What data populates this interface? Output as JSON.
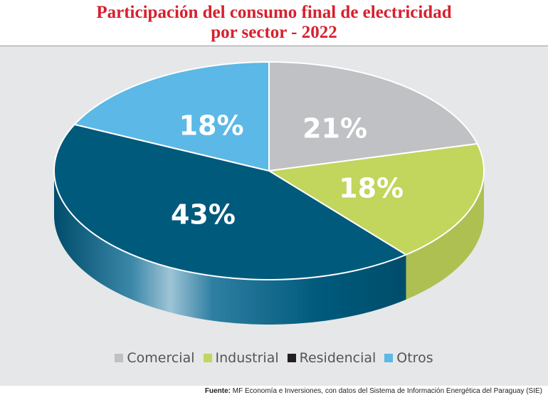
{
  "header": {
    "title_line1": "Participación del consumo final de electricidad",
    "title_line2": "por sector - 2022"
  },
  "chart_data": {
    "type": "pie",
    "style": "3d",
    "title": "Participación del consumo final de electricidad por sector - 2022",
    "unit": "%",
    "slices": [
      {
        "name": "Comercial",
        "value": 21,
        "label": "21%",
        "color": "#bfc1c4"
      },
      {
        "name": "Industrial",
        "value": 18,
        "label": "18%",
        "color": "#c2d55c"
      },
      {
        "name": "Residencial",
        "value": 43,
        "label": "43%",
        "color": "#005a7c"
      },
      {
        "name": "Otros",
        "value": 18,
        "label": "18%",
        "color": "#5cb8e6"
      }
    ],
    "legend": {
      "placement": "bottom",
      "entries": [
        {
          "name": "Comercial",
          "color": "#bfc1c4"
        },
        {
          "name": "Industrial",
          "color": "#c2d55c"
        },
        {
          "name": "Residencial",
          "color": "#231f20"
        },
        {
          "name": "Otros",
          "color": "#5cb8e6"
        }
      ]
    }
  },
  "footer": {
    "source_label": "Fuente:",
    "source_text": " MF Economía e Inversiones, con datos del Sistema de Información Energética del Paraguay (SIE)"
  }
}
